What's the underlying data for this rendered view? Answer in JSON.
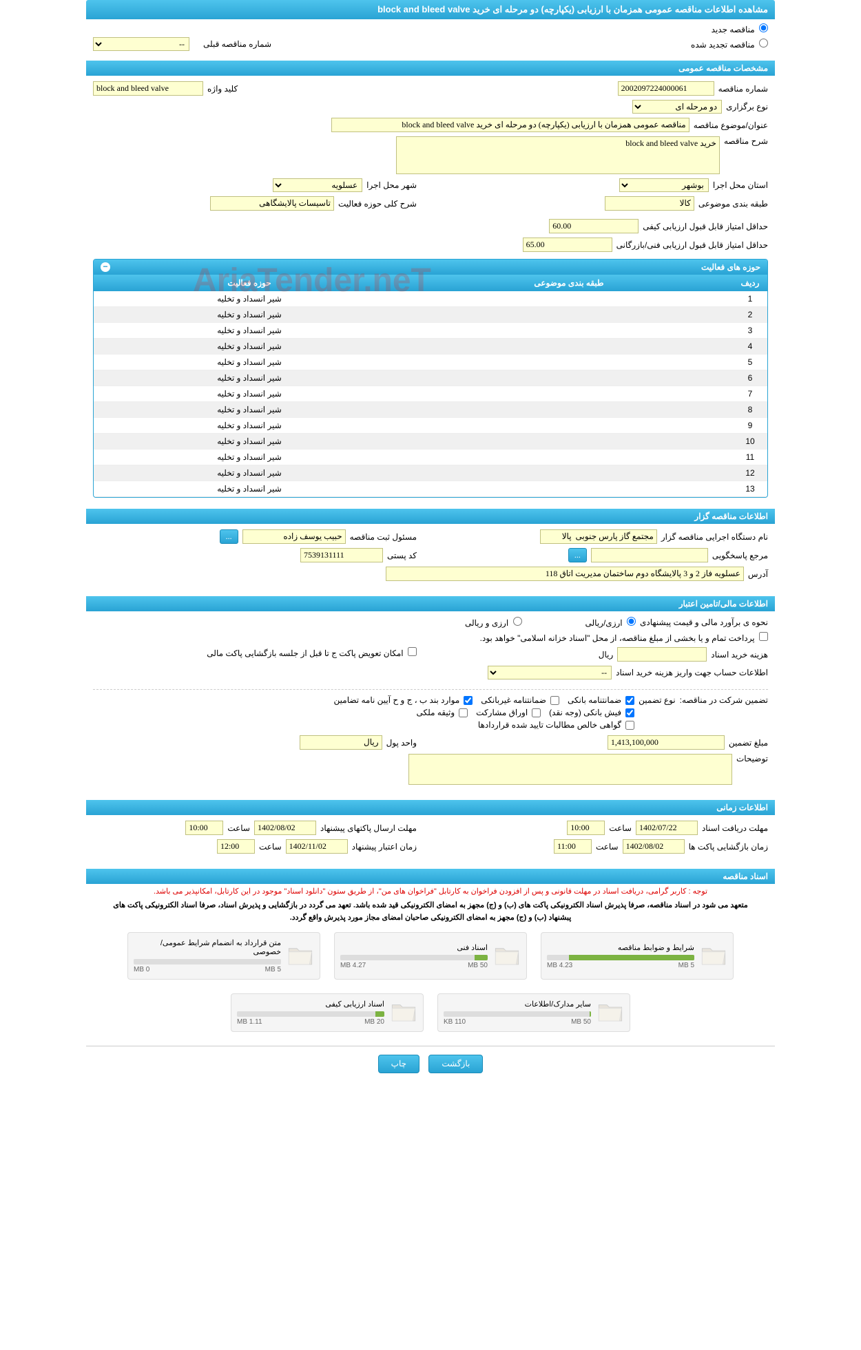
{
  "page_title": "مشاهده اطلاعات مناقصه عمومی همزمان با ارزیابی (یکپارچه) دو مرحله ای خرید block and bleed valve",
  "radio_new": "مناقصه جدید",
  "radio_renew": "مناقصه تجدید شده",
  "prev_number_label": "شماره مناقصه قبلی",
  "prev_number_placeholder": "--",
  "sections": {
    "general": "مشخصات مناقصه عمومی",
    "holder": "اطلاعات مناقصه گزار",
    "financial": "اطلاعات مالی/تامین اعتبار",
    "timing": "اطلاعات زمانی",
    "documents": "اسناد مناقصه"
  },
  "general": {
    "number_label": "شماره مناقصه",
    "number": "2002097224000061",
    "type_label": "نوع برگزاری",
    "type": "دو مرحله ای",
    "keyword_label": "کلید واژه",
    "keyword": "block and bleed valve",
    "subject_label": "عنوان/موضوع مناقصه",
    "subject": "مناقصه عمومی همزمان با ارزیابی (یکپارچه) دو مرحله ای خرید block and bleed valve",
    "desc_label": "شرح مناقصه",
    "desc": "خرید block and bleed valve",
    "province_label": "استان محل اجرا",
    "province": "بوشهر",
    "city_label": "شهر محل اجرا",
    "city": "عسلویه",
    "category_label": "طبقه بندی موضوعی",
    "category": "کالا",
    "activity_desc_label": "شرح کلی حوزه فعالیت",
    "activity_desc": "تاسیسات پالایشگاهی",
    "min_quality_label": "حداقل امتیاز قابل قبول ارزیابی کیفی",
    "min_quality": "60.00",
    "min_tech_label": "حداقل امتیاز قابل قبول ارزیابی فنی/بازرگانی",
    "min_tech": "65.00"
  },
  "activities": {
    "title": "حوزه های فعالیت",
    "col_row": "ردیف",
    "col_cat": "طبقه بندی موضوعی",
    "col_act": "حوزه فعالیت",
    "rows": [
      {
        "n": "1",
        "cat": "",
        "act": "شیر انسداد و تخلیه"
      },
      {
        "n": "2",
        "cat": "",
        "act": "شیر انسداد و تخلیه"
      },
      {
        "n": "3",
        "cat": "",
        "act": "شیر انسداد و تخلیه"
      },
      {
        "n": "4",
        "cat": "",
        "act": "شیر انسداد و تخلیه"
      },
      {
        "n": "5",
        "cat": "",
        "act": "شیر انسداد و تخلیه"
      },
      {
        "n": "6",
        "cat": "",
        "act": "شیر انسداد و تخلیه"
      },
      {
        "n": "7",
        "cat": "",
        "act": "شیر انسداد و تخلیه"
      },
      {
        "n": "8",
        "cat": "",
        "act": "شیر انسداد و تخلیه"
      },
      {
        "n": "9",
        "cat": "",
        "act": "شیر انسداد و تخلیه"
      },
      {
        "n": "10",
        "cat": "",
        "act": "شیر انسداد و تخلیه"
      },
      {
        "n": "11",
        "cat": "",
        "act": "شیر انسداد و تخلیه"
      },
      {
        "n": "12",
        "cat": "",
        "act": "شیر انسداد و تخلیه"
      },
      {
        "n": "13",
        "cat": "",
        "act": "شیر انسداد و تخلیه"
      }
    ]
  },
  "holder": {
    "org_label": "نام دستگاه اجرایی مناقصه گزار",
    "org": "مجتمع گاز پارس جنوبی  پالا",
    "reg_person_label": "مسئول ثبت مناقصه",
    "reg_person": "حبیب یوسف زاده",
    "more_btn": "...",
    "contact_label": "مرجع پاسخگویی",
    "contact_btn": "...",
    "postal_label": "کد پستی",
    "postal": "7539131111",
    "address_label": "آدرس",
    "address": "عسلویه فاز 2 و 3 پالایشگاه دوم ساختمان مدیریت اتاق 118"
  },
  "financial": {
    "estimate_label": "نحوه ی برآورد مالی و قیمت پیشنهادی",
    "rb_rial": "ارزی/ریالی",
    "rb_both": "ارزی و ریالی",
    "payment_note": "پرداخت تمام و یا بخشی از مبلغ مناقصه، از محل \"اسناد خزانه اسلامی\" خواهد بود.",
    "doc_cost_label": "هزینه خرید اسناد",
    "doc_cost_unit": "ریال",
    "account_label": "اطلاعات حساب جهت واریز هزینه خرید اسناد",
    "account_placeholder": "--",
    "replace_cb": "امکان تعویض پاکت ج تا قبل از جلسه بازگشایی پاکت مالی",
    "guarantee_label": "تضمین شرکت در مناقصه:",
    "guarantee_type_label": "نوع تضمین",
    "cb_bank": "ضمانتنامه بانکی",
    "cb_nonbank": "ضمانتنامه غیربانکی",
    "cb_items": "موارد بند ب ، ج و ح آیین نامه تضامین",
    "cb_cash": "فیش بانکی (وجه نقد)",
    "cb_shares": "اوراق مشارکت",
    "cb_property": "وثیقه ملکی",
    "cb_receivables": "گواهی خالص مطالبات تایید شده قراردادها",
    "amount_label": "مبلغ تضمین",
    "amount": "1,413,100,000",
    "currency_label": "واحد پول",
    "currency": "ریال",
    "notes_label": "توضیحات"
  },
  "timing": {
    "receive_deadline_label": "مهلت دریافت اسناد",
    "receive_date": "1402/07/22",
    "time_label": "ساعت",
    "receive_time": "10:00",
    "send_deadline_label": "مهلت ارسال پاکتهای پیشنهاد",
    "send_date": "1402/08/02",
    "send_time": "10:00",
    "open_label": "زمان بازگشایی پاکت ها",
    "open_date": "1402/08/02",
    "open_time": "11:00",
    "validity_label": "زمان اعتبار پیشنهاد",
    "validity_date": "1402/11/02",
    "validity_time": "12:00"
  },
  "docs": {
    "red_note": "توجه : کاربر گرامی، دریافت اسناد در مهلت قانونی و پس از افزودن فراخوان به کارتابل \"فراخوان های من\"، از طریق ستون \"دانلود اسناد\" موجود در این کارتابل، امکانپذیر می باشد.",
    "black_note": "متعهد می شود در اسناد مناقصه، صرفا پذیرش اسناد الکترونیکی پاکت های (ب) و (ج) مجهز به امضای الکترونیکی قید شده باشد. تعهد می گردد در بازگشایی و پذیرش اسناد، صرفا اسناد الکترونیکی پاکت های پبشنهاد (ب) و (ج) مجهز به امضای الکترونیکی صاحبان امضای مجاز مورد پذیرش واقع گردد.",
    "items": [
      {
        "title": "شرایط و ضوابط مناقصه",
        "used": "4.23 MB",
        "total": "5 MB",
        "pct": 85
      },
      {
        "title": "اسناد فنی",
        "used": "4.27 MB",
        "total": "50 MB",
        "pct": 9
      },
      {
        "title": "متن قرارداد به انضمام شرایط عمومی/خصوصی",
        "used": "0 MB",
        "total": "5 MB",
        "pct": 0
      },
      {
        "title": "سایر مدارک/اطلاعات",
        "used": "110 KB",
        "total": "50 MB",
        "pct": 1
      },
      {
        "title": "اسناد ارزیابی کیفی",
        "used": "1.11 MB",
        "total": "20 MB",
        "pct": 6
      }
    ]
  },
  "footer": {
    "back": "بازگشت",
    "print": "چاپ"
  },
  "colors": {
    "header_grad_top": "#4ec4ed",
    "header_grad_bot": "#29a3d4",
    "yellow_bg": "#feffd1",
    "progress_green": "#7cb342"
  }
}
